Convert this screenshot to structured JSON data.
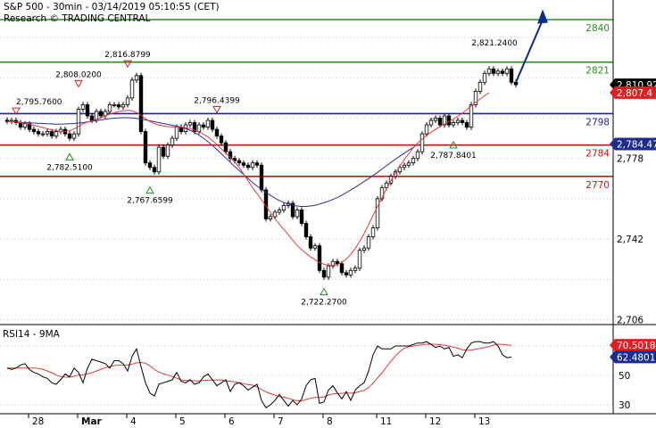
{
  "header": {
    "title": "S&P 500 - 30min - 03/14/2019 05:10:55 (CET)",
    "subtitle": "Research © TRADING CENTRAL"
  },
  "colors": {
    "green_level": "#2e8b22",
    "blue_level": "#1f1fa0",
    "red_level": "#cc1111",
    "ma_red": "#e03a3a",
    "ma_blue": "#2d2d9a",
    "arrow": "#0a2a8c",
    "price_badge": "#000000",
    "red_badge": "#e02020",
    "blue_badge": "#1e2d8c"
  },
  "chart_data": [
    {
      "type": "candlestick",
      "name": "price",
      "x_ticks": [
        "28",
        "Mar",
        "4",
        "5",
        "6",
        "7",
        "8",
        "11",
        "12",
        "13"
      ],
      "y_ticks": [
        "2,778",
        "2,742",
        "2,706"
      ],
      "ylim": [
        2696,
        2851
      ],
      "grid": true,
      "levels": [
        {
          "label": "2840",
          "value": 2840,
          "color": "green"
        },
        {
          "label": "2821",
          "value": 2821,
          "color": "green"
        },
        {
          "label": "2798",
          "value": 2798,
          "color": "blue"
        },
        {
          "label": "2784",
          "value": 2784,
          "color": "red"
        },
        {
          "label": "2770",
          "value": 2770,
          "color": "red"
        }
      ],
      "annotations": [
        {
          "text": "2,795.7600",
          "x": 2,
          "y": 2795.76,
          "marker": "down"
        },
        {
          "text": "2,782.5100",
          "x": 14,
          "y": 2782.51,
          "marker": "up"
        },
        {
          "text": "2,808.0200",
          "x": 16,
          "y": 2808.02,
          "marker": "down"
        },
        {
          "text": "2,816.8799",
          "x": 27,
          "y": 2816.88,
          "marker": "down"
        },
        {
          "text": "2,767.6599",
          "x": 32,
          "y": 2767.66,
          "marker": "up"
        },
        {
          "text": "2,796.4399",
          "x": 47,
          "y": 2796.44,
          "marker": "down"
        },
        {
          "text": "2,722.2700",
          "x": 71,
          "y": 2722.27,
          "marker": "up"
        },
        {
          "text": "2,787.8401",
          "x": 100,
          "y": 2787.84,
          "marker": "up"
        },
        {
          "text": "2,821.2400",
          "x": 110,
          "y": 2821.24,
          "marker": "none"
        }
      ],
      "badges": [
        {
          "label": "2,810.92",
          "value": 2810.92,
          "color": "black"
        },
        {
          "label": "2,807.4",
          "value": 2807.4,
          "color": "red"
        },
        {
          "label": "2,784.47",
          "value": 2784.47,
          "color": "blue"
        }
      ],
      "forecast": {
        "from": [
          114,
          2812
        ],
        "to": [
          120,
          2843
        ]
      },
      "closes": [
        2794.5,
        2795,
        2794,
        2792,
        2793.5,
        2791,
        2790,
        2789,
        2789,
        2790,
        2788,
        2790,
        2791,
        2789,
        2787,
        2789,
        2800,
        2802,
        2797,
        2795,
        2799,
        2797,
        2799,
        2802,
        2802,
        2801,
        2802,
        2805,
        2813,
        2815,
        2790,
        2776,
        2774,
        2772,
        2783,
        2779,
        2784,
        2787,
        2792,
        2790,
        2793,
        2794,
        2790,
        2793,
        2792,
        2795,
        2791,
        2788,
        2785,
        2781,
        2778,
        2777,
        2776,
        2775,
        2774,
        2776,
        2775,
        2764,
        2751,
        2752,
        2754,
        2755,
        2757,
        2758,
        2752,
        2755,
        2749,
        2743,
        2738,
        2739,
        2728,
        2725,
        2730,
        2732,
        2731,
        2727,
        2726,
        2728,
        2729,
        2737,
        2738,
        2743,
        2747,
        2760,
        2765,
        2767,
        2770,
        2772,
        2774,
        2775,
        2776,
        2778,
        2781,
        2789,
        2793,
        2795,
        2796,
        2793,
        2797,
        2793,
        2794,
        2795,
        2794,
        2792,
        2802,
        2808,
        2812,
        2816,
        2818,
        2816,
        2817,
        2816,
        2818,
        2812,
        2810.92
      ],
      "ma_red": [
        2794.5,
        2794.4,
        2794.3,
        2794,
        2793.7,
        2793.3,
        2792.8,
        2792.3,
        2791.8,
        2791.3,
        2790.8,
        2790.4,
        2790,
        2789.9,
        2790.5,
        2791.2,
        2792.3,
        2793.5,
        2794.2,
        2794.8,
        2795.5,
        2796.2,
        2797,
        2797.8,
        2798.4,
        2799,
        2799.3,
        2799.5,
        2799.3,
        2798.5,
        2797.2,
        2795.8,
        2794.5,
        2793.6,
        2792.9,
        2792.5,
        2792.2,
        2792.1,
        2792,
        2791.9,
        2791.7,
        2791.3,
        2790.6,
        2789.8,
        2788.9,
        2787.6,
        2786,
        2784.2,
        2782.3,
        2780.4,
        2778.5,
        2776.5,
        2774,
        2771,
        2768,
        2765,
        2762.3,
        2759.5,
        2756.7,
        2754,
        2751.2,
        2748.6,
        2746.3,
        2744,
        2741.5,
        2739.2,
        2737.3,
        2735.6,
        2734,
        2732.8,
        2731.5,
        2730.8,
        2730.3,
        2730.2,
        2730.6,
        2731.6,
        2733.1,
        2735.2,
        2737.8,
        2741,
        2744.5,
        2748.5,
        2752.6,
        2756.6,
        2760.5,
        2764.3,
        2768,
        2771.5,
        2774.6,
        2777.5,
        2780.2,
        2782.7,
        2784.9,
        2786.7,
        2788.3,
        2789.7,
        2791,
        2792.3,
        2793.4,
        2794.5,
        2795.6,
        2796.8,
        2798.2,
        2799.8,
        2801.4,
        2803,
        2804.6,
        2806,
        2807.4
      ],
      "ma_blue": [
        2794.5,
        2794.5,
        2794.3,
        2794.1,
        2794,
        2793.9,
        2793.8,
        2793.7,
        2793.6,
        2793.5,
        2793.4,
        2793.3,
        2793.3,
        2793.4,
        2793.5,
        2793.6,
        2793.8,
        2794,
        2794.3,
        2794.6,
        2794.9,
        2795.2,
        2795.5,
        2795.8,
        2796,
        2796.1,
        2796.2,
        2796.2,
        2796.1,
        2795.9,
        2795.6,
        2795.2,
        2794.8,
        2794.4,
        2794,
        2793.6,
        2793.2,
        2792.8,
        2792.4,
        2792,
        2791.4,
        2790.6,
        2789.6,
        2788.4,
        2787,
        2785.5,
        2783.8,
        2782,
        2780.1,
        2778.2,
        2776.3,
        2774.4,
        2772.6,
        2770.8,
        2769,
        2767.3,
        2765.7,
        2764.2,
        2762.8,
        2761.5,
        2760.3,
        2759.2,
        2758.3,
        2757.6,
        2757.1,
        2756.8,
        2756.6,
        2756.6,
        2756.8,
        2757.1,
        2757.6,
        2758.2,
        2758.9,
        2759.7,
        2760.6,
        2761.6,
        2762.7,
        2763.9,
        2765.1,
        2766.4,
        2767.7,
        2769,
        2770.4,
        2771.8,
        2773.3,
        2774.7,
        2776.2,
        2777.6,
        2779,
        2780.4,
        2781.7,
        2782.9,
        2784.47
      ]
    },
    {
      "type": "line",
      "name": "RSI14 - 9MA",
      "title": "RSI14 - 9MA",
      "y_ticks": [
        "50",
        "30"
      ],
      "ylim": [
        22,
        78
      ],
      "badges": [
        {
          "label": "70.5018",
          "value": 70.5,
          "color": "red"
        },
        {
          "label": "62.4801",
          "value": 62.48,
          "color": "blue"
        }
      ],
      "rsi": [
        55,
        54,
        55,
        57,
        58,
        54,
        52,
        51,
        49,
        48,
        45,
        44,
        47,
        51,
        49,
        55,
        52,
        45,
        55,
        61,
        60,
        59,
        58,
        55,
        60,
        60,
        58,
        53,
        63,
        68,
        56,
        45,
        38,
        36,
        44,
        45,
        46,
        47,
        52,
        46,
        45,
        47,
        44,
        45,
        49,
        51,
        47,
        43,
        45,
        47,
        39,
        44,
        45,
        43,
        40,
        42,
        44,
        33,
        28,
        30,
        33,
        37,
        33,
        29,
        33,
        30,
        34,
        43,
        47,
        48,
        31,
        32,
        40,
        43,
        38,
        34,
        39,
        33,
        40,
        43,
        45,
        53,
        64,
        70,
        68,
        68,
        68,
        70,
        70,
        70,
        70,
        71,
        72,
        72,
        73,
        71,
        69,
        70,
        68,
        69,
        63,
        64,
        62,
        68,
        72,
        73,
        73,
        72,
        72,
        73,
        70,
        64,
        62,
        62.5
      ],
      "rsi_ma": [
        55,
        55,
        55,
        55,
        55,
        55,
        55,
        54.8,
        54.2,
        53,
        51.8,
        50.2,
        49.2,
        48.8,
        48.8,
        49.4,
        50.2,
        50.5,
        51,
        51.8,
        53,
        54.2,
        55.3,
        56,
        56.6,
        57,
        57,
        57,
        57.7,
        58.5,
        58.8,
        58.3,
        56.4,
        54,
        52.3,
        51,
        50.2,
        49.3,
        48.1,
        46.9,
        46.6,
        46.4,
        46.3,
        46.2,
        46.6,
        46.7,
        46.8,
        46.9,
        46.9,
        46.2,
        46,
        45.6,
        45,
        44.4,
        43.7,
        43.4,
        42.2,
        40.4,
        38.7,
        37.6,
        36.6,
        35.6,
        35.2,
        34.5,
        33.5,
        32.8,
        32.6,
        33.7,
        34.4,
        35.1,
        34.9,
        35.4,
        36.6,
        37.5,
        37.6,
        37.8,
        38.1,
        37.9,
        38.2,
        39,
        39.8,
        41.7,
        44.7,
        48.3,
        51.8,
        55.7,
        59.7,
        63.2,
        66.1,
        68.4,
        69.5,
        69.9,
        70.5,
        70.8,
        71.2,
        71.3,
        71.1,
        70.9,
        70.4,
        70,
        69.2,
        68.5,
        67.4,
        67.1,
        67.2,
        67.8,
        68.3,
        68.9,
        69.6,
        70.6,
        71.2,
        71.1,
        70.7,
        70.5018
      ]
    }
  ]
}
